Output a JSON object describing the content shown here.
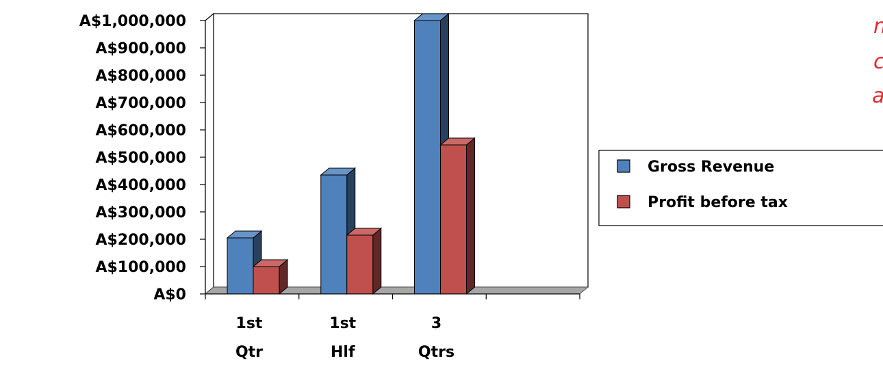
{
  "chart_data": {
    "type": "bar",
    "title": "",
    "xlabel": "",
    "ylabel": "",
    "categories": [
      [
        "1st",
        "Qtr"
      ],
      [
        "1st",
        "Hlf"
      ],
      [
        "3",
        "Qtrs"
      ],
      [
        "",
        ""
      ]
    ],
    "series": [
      {
        "name": "Gross Revenue",
        "color": "#4f81bd",
        "values": [
          205000,
          435000,
          1000000,
          null
        ]
      },
      {
        "name": "Profit before tax",
        "color": "#c0504d",
        "values": [
          100000,
          215000,
          545000,
          null
        ]
      }
    ],
    "ylim": [
      0,
      1000000
    ],
    "yticks": [
      0,
      100000,
      200000,
      300000,
      400000,
      500000,
      600000,
      700000,
      800000,
      900000,
      1000000
    ],
    "ytick_labels": [
      "A$0",
      "A$100,000",
      "A$200,000",
      "A$300,000",
      "A$400,000",
      "A$500,000",
      "A$600,000",
      "A$700,000",
      "A$800,000",
      "A$900,000",
      "A$1,000,000"
    ],
    "grid": true,
    "legend_position": "right",
    "annotation_fragments": [
      "n",
      "c",
      "a"
    ]
  }
}
